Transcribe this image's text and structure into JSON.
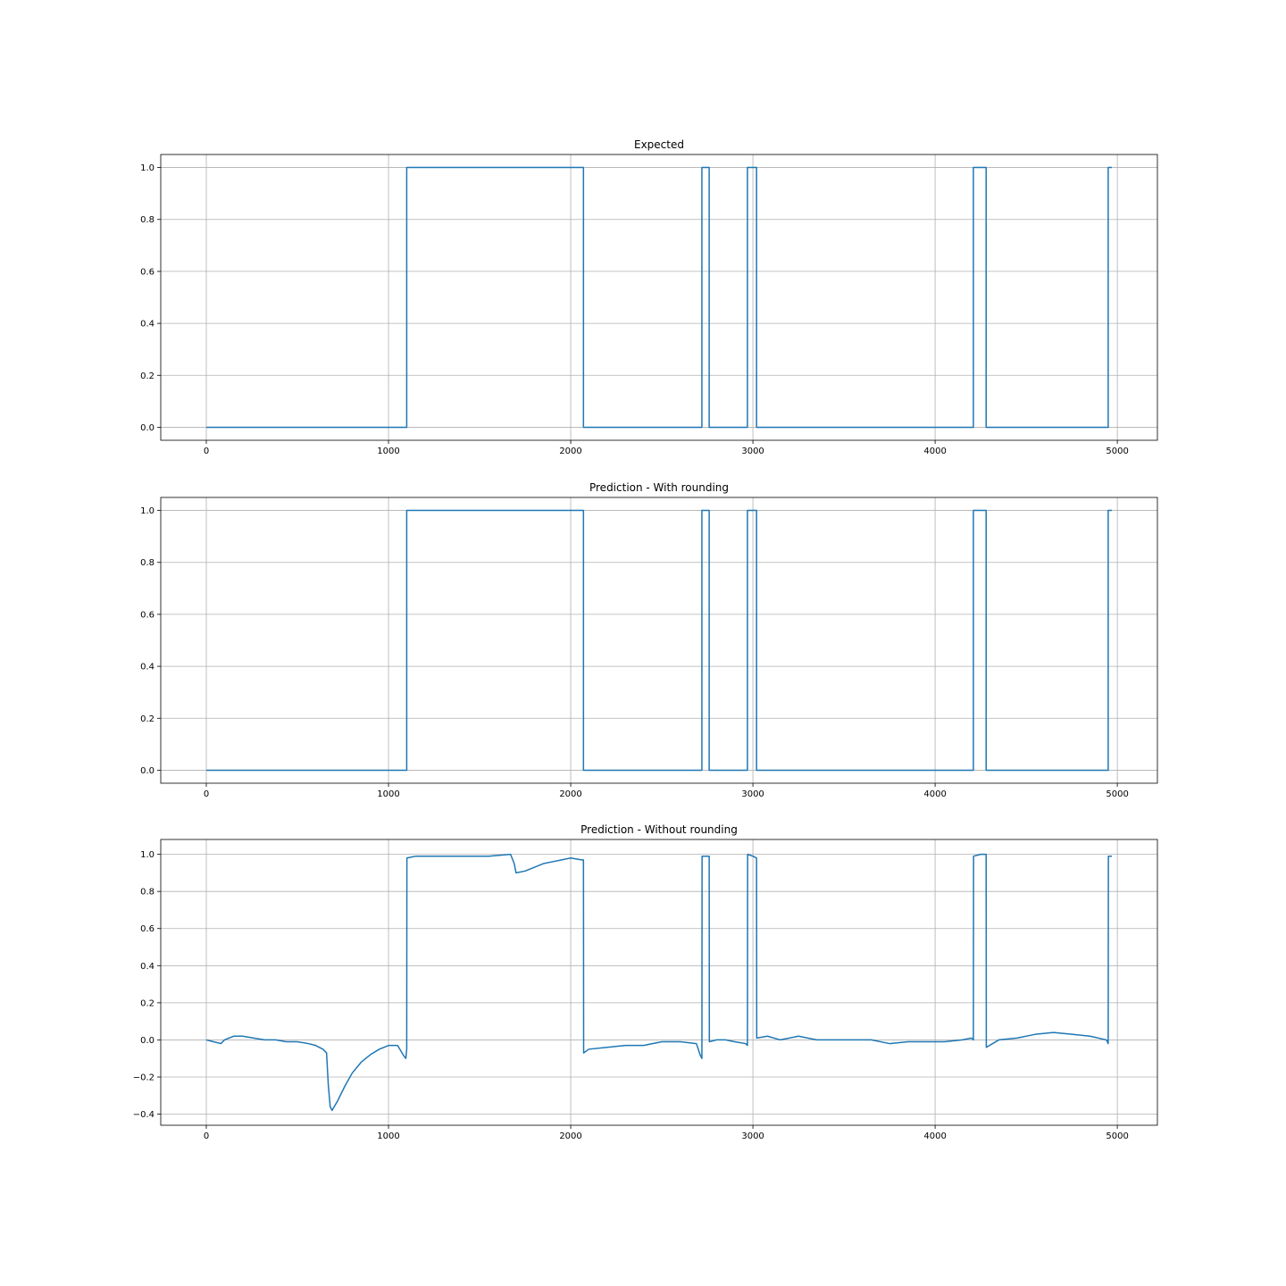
{
  "chart_data": [
    {
      "type": "line",
      "title": "Expected",
      "xlabel": "",
      "ylabel": "",
      "xlim": [
        -250,
        5220
      ],
      "ylim": [
        -0.05,
        1.05
      ],
      "xticks": [
        0,
        1000,
        2000,
        3000,
        4000,
        5000
      ],
      "xtick_labels": [
        "0",
        "1000",
        "2000",
        "3000",
        "4000",
        "5000"
      ],
      "yticks": [
        0.0,
        0.2,
        0.4,
        0.6,
        0.8,
        1.0
      ],
      "ytick_labels": [
        "0.0",
        "0.2",
        "0.4",
        "0.6",
        "0.8",
        "1.0"
      ],
      "grid": true,
      "legend": "none",
      "series_color": "#1f77b4",
      "series": [
        {
          "x": [
            0,
            1100,
            1100,
            2070,
            2070,
            2720,
            2720,
            2760,
            2760,
            2970,
            2970,
            3020,
            3020,
            4210,
            4210,
            4280,
            4280,
            4950,
            4950,
            4970
          ],
          "y": [
            0,
            0,
            1,
            1,
            0,
            0,
            1,
            1,
            0,
            0,
            1,
            1,
            0,
            0,
            1,
            1,
            0,
            0,
            1,
            1
          ]
        }
      ]
    },
    {
      "type": "line",
      "title": "Prediction - With rounding",
      "xlabel": "",
      "ylabel": "",
      "xlim": [
        -250,
        5220
      ],
      "ylim": [
        -0.05,
        1.05
      ],
      "xticks": [
        0,
        1000,
        2000,
        3000,
        4000,
        5000
      ],
      "xtick_labels": [
        "0",
        "1000",
        "2000",
        "3000",
        "4000",
        "5000"
      ],
      "yticks": [
        0.0,
        0.2,
        0.4,
        0.6,
        0.8,
        1.0
      ],
      "ytick_labels": [
        "0.0",
        "0.2",
        "0.4",
        "0.6",
        "0.8",
        "1.0"
      ],
      "grid": true,
      "legend": "none",
      "series_color": "#1f77b4",
      "series": [
        {
          "x": [
            0,
            1100,
            1100,
            2070,
            2070,
            2720,
            2720,
            2760,
            2760,
            2970,
            2970,
            3020,
            3020,
            4210,
            4210,
            4280,
            4280,
            4950,
            4950,
            4970
          ],
          "y": [
            0,
            0,
            1,
            1,
            0,
            0,
            1,
            1,
            0,
            0,
            1,
            1,
            0,
            0,
            1,
            1,
            0,
            0,
            1,
            1
          ]
        }
      ]
    },
    {
      "type": "line",
      "title": "Prediction - Without rounding",
      "xlabel": "",
      "ylabel": "",
      "xlim": [
        -250,
        5220
      ],
      "ylim": [
        -0.46,
        1.08
      ],
      "xticks": [
        0,
        1000,
        2000,
        3000,
        4000,
        5000
      ],
      "xtick_labels": [
        "0",
        "1000",
        "2000",
        "3000",
        "4000",
        "5000"
      ],
      "yticks": [
        -0.4,
        -0.2,
        0.0,
        0.2,
        0.4,
        0.6,
        0.8,
        1.0
      ],
      "ytick_labels": [
        "−0.4",
        "−0.2",
        "0.0",
        "0.2",
        "0.4",
        "0.6",
        "0.8",
        "1.0"
      ],
      "grid": true,
      "legend": "none",
      "series_color": "#1f77b4",
      "series": [
        {
          "x": [
            0,
            40,
            80,
            100,
            150,
            200,
            260,
            320,
            380,
            440,
            500,
            560,
            600,
            640,
            660,
            670,
            680,
            690,
            720,
            760,
            800,
            850,
            900,
            950,
            1000,
            1050,
            1080,
            1095,
            1100,
            1101,
            1150,
            1250,
            1400,
            1550,
            1670,
            1690,
            1700,
            1750,
            1800,
            1850,
            1900,
            1950,
            2000,
            2060,
            2070,
            2071,
            2100,
            2200,
            2300,
            2400,
            2500,
            2600,
            2690,
            2710,
            2720,
            2721,
            2740,
            2760,
            2761,
            2800,
            2850,
            2900,
            2960,
            2970,
            2971,
            3000,
            3020,
            3021,
            3080,
            3150,
            3250,
            3350,
            3450,
            3550,
            3650,
            3750,
            3850,
            3950,
            4050,
            4150,
            4200,
            4210,
            4211,
            4250,
            4280,
            4281,
            4350,
            4450,
            4550,
            4650,
            4750,
            4850,
            4940,
            4950,
            4951,
            4970
          ],
          "y": [
            0.0,
            -0.01,
            -0.02,
            0.0,
            0.02,
            0.02,
            0.01,
            0.0,
            0.0,
            -0.01,
            -0.01,
            -0.02,
            -0.03,
            -0.05,
            -0.07,
            -0.25,
            -0.36,
            -0.38,
            -0.33,
            -0.25,
            -0.18,
            -0.12,
            -0.08,
            -0.05,
            -0.03,
            -0.03,
            -0.08,
            -0.1,
            -0.05,
            0.98,
            0.99,
            0.99,
            0.99,
            0.99,
            1.0,
            0.95,
            0.9,
            0.91,
            0.93,
            0.95,
            0.96,
            0.97,
            0.98,
            0.97,
            0.97,
            -0.07,
            -0.05,
            -0.04,
            -0.03,
            -0.03,
            -0.01,
            -0.01,
            -0.02,
            -0.08,
            -0.1,
            0.99,
            0.99,
            0.99,
            -0.01,
            0.0,
            0.0,
            -0.01,
            -0.02,
            -0.03,
            1.0,
            0.99,
            0.98,
            0.01,
            0.02,
            0.0,
            0.02,
            0.0,
            0.0,
            0.0,
            0.0,
            -0.02,
            -0.01,
            -0.01,
            -0.01,
            0.0,
            0.01,
            0.0,
            0.99,
            1.0,
            1.0,
            -0.04,
            0.0,
            0.01,
            0.03,
            0.04,
            0.03,
            0.02,
            0.0,
            -0.02,
            0.99,
            0.99
          ]
        }
      ]
    }
  ]
}
